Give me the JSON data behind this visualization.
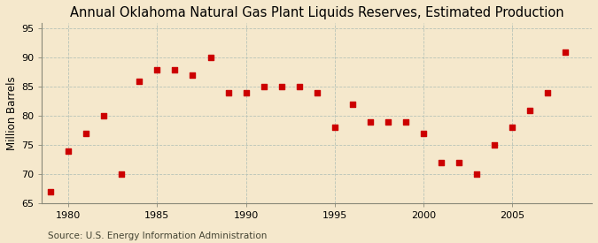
{
  "title": "Annual Oklahoma Natural Gas Plant Liquids Reserves, Estimated Production",
  "ylabel": "Million Barrels",
  "source": "Source: U.S. Energy Information Administration",
  "background_color": "#f5e8cc",
  "plot_background_color": "#f5e8cc",
  "years": [
    1979,
    1980,
    1981,
    1982,
    1983,
    1984,
    1985,
    1986,
    1987,
    1988,
    1989,
    1990,
    1991,
    1992,
    1993,
    1994,
    1995,
    1996,
    1997,
    1998,
    1999,
    2000,
    2001,
    2002,
    2003,
    2004,
    2005,
    2006,
    2007,
    2008
  ],
  "values": [
    67,
    74,
    77,
    80,
    70,
    86,
    88,
    88,
    87,
    90,
    84,
    84,
    85,
    85,
    85,
    84,
    78,
    82,
    79,
    79,
    79,
    77,
    72,
    72,
    70,
    75,
    78,
    81,
    84,
    91
  ],
  "marker_color": "#cc0000",
  "marker_size": 25,
  "ylim": [
    65,
    96
  ],
  "yticks": [
    65,
    70,
    75,
    80,
    85,
    90,
    95
  ],
  "xlim": [
    1978.5,
    2009.5
  ],
  "xticks": [
    1980,
    1985,
    1990,
    1995,
    2000,
    2005
  ],
  "grid_color": "#b8c4b8",
  "title_fontsize": 10.5,
  "label_fontsize": 8.5,
  "tick_fontsize": 8,
  "source_fontsize": 7.5
}
